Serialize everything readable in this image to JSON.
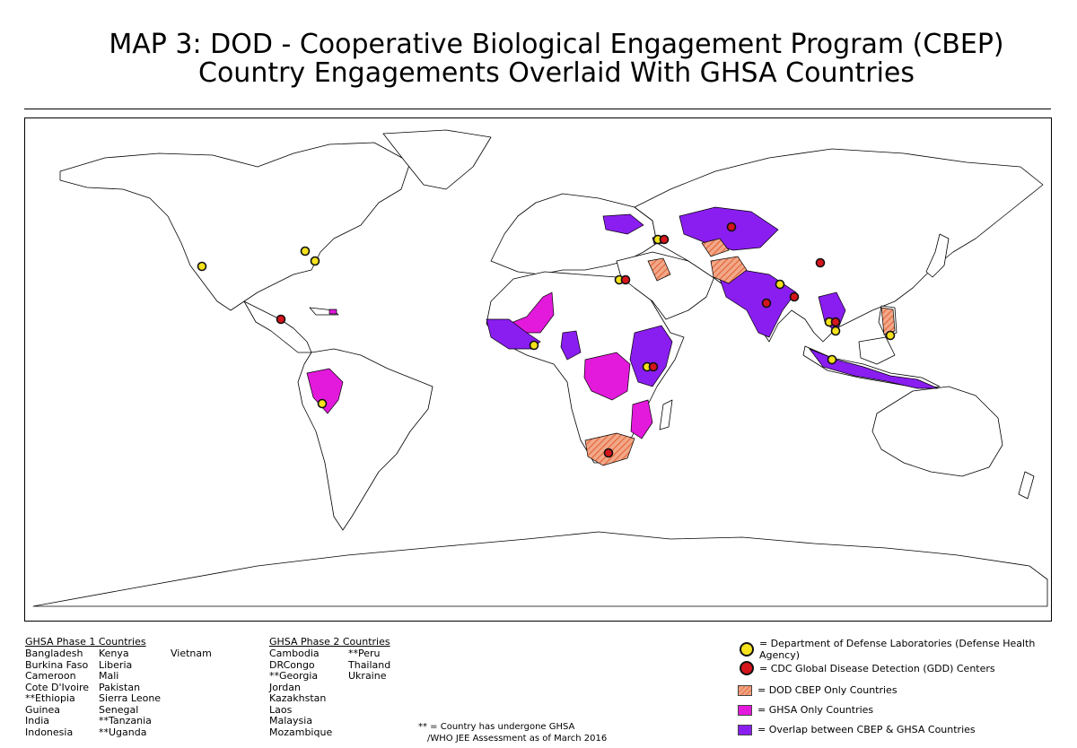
{
  "title": {
    "line1": "MAP 3: DOD - Cooperative Biological Engagement Program (CBEP)",
    "line2": "Country Engagements Overlaid With GHSA Countries"
  },
  "phase1": {
    "header": "GHSA Phase 1 Countries",
    "col1": [
      "Bangladesh",
      "Burkina Faso",
      "Cameroon",
      "Cote D'Ivoire",
      "**Ethiopia",
      "Guinea",
      "India",
      "Indonesia"
    ],
    "col2": [
      "Kenya",
      "Liberia",
      "Mali",
      "Pakistan",
      "Sierra Leone",
      "Senegal",
      "**Tanzania",
      "**Uganda"
    ],
    "col3": [
      "Vietnam"
    ]
  },
  "phase2": {
    "header": "GHSA Phase 2 Countries",
    "col1": [
      "Cambodia",
      "DRCongo",
      "**Georgia",
      "Jordan",
      "Kazakhstan",
      "Laos",
      "Malaysia",
      "Mozambique"
    ],
    "col2": [
      "**Peru",
      "Thailand",
      "Ukraine"
    ]
  },
  "note": {
    "line1": "** = Country has undergone GHSA",
    "line2": "/WHO JEE Assessment as of March 2016"
  },
  "legend": [
    {
      "label": "= Department of Defense Laboratories (Defense Health Agency)",
      "kind": "dot",
      "color": "#f5e21b"
    },
    {
      "label": "= CDC Global Disease Detection (GDD) Centers",
      "kind": "dot",
      "color": "#d6151c"
    },
    {
      "label": "= DOD CBEP Only Countries",
      "kind": "hatch",
      "color": "#e9845c"
    },
    {
      "label": "= GHSA Only Countries",
      "kind": "fill",
      "color": "#e31adc"
    },
    {
      "label": "= Overlap between CBEP & GHSA Countries",
      "kind": "fill",
      "color": "#8a1ef0"
    }
  ],
  "colors": {
    "cbep_only": "#e9845c",
    "ghsa_only": "#e31adc",
    "overlap": "#8a1ef0",
    "dod_lab": "#f5e21b",
    "cdc_gdd": "#d6151c"
  }
}
